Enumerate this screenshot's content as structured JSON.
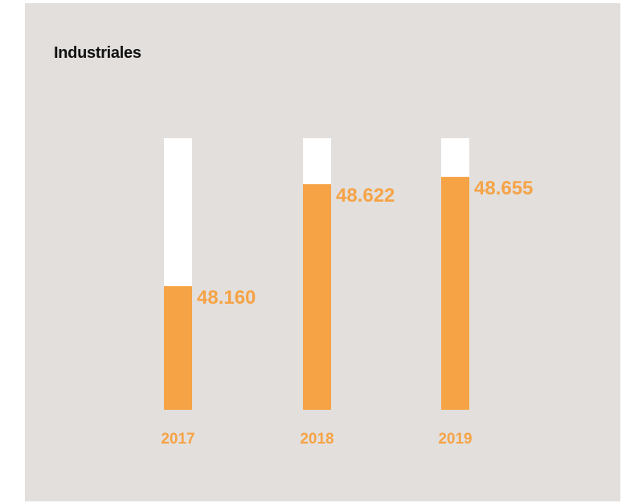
{
  "chart_data": {
    "type": "bar",
    "title": "Industriales",
    "categories": [
      "2017",
      "2018",
      "2019"
    ],
    "values": [
      48160,
      48622,
      48655
    ],
    "value_labels": [
      "48.160",
      "48.622",
      "48.655"
    ],
    "ylim": [
      47600,
      48830
    ],
    "xlabel": "",
    "ylabel": "",
    "grid": false,
    "colors": {
      "fill": "#f6a346",
      "track": "#ffffff",
      "background": "#e2dfdd",
      "label": "#f6a346",
      "title": "#111111"
    }
  }
}
